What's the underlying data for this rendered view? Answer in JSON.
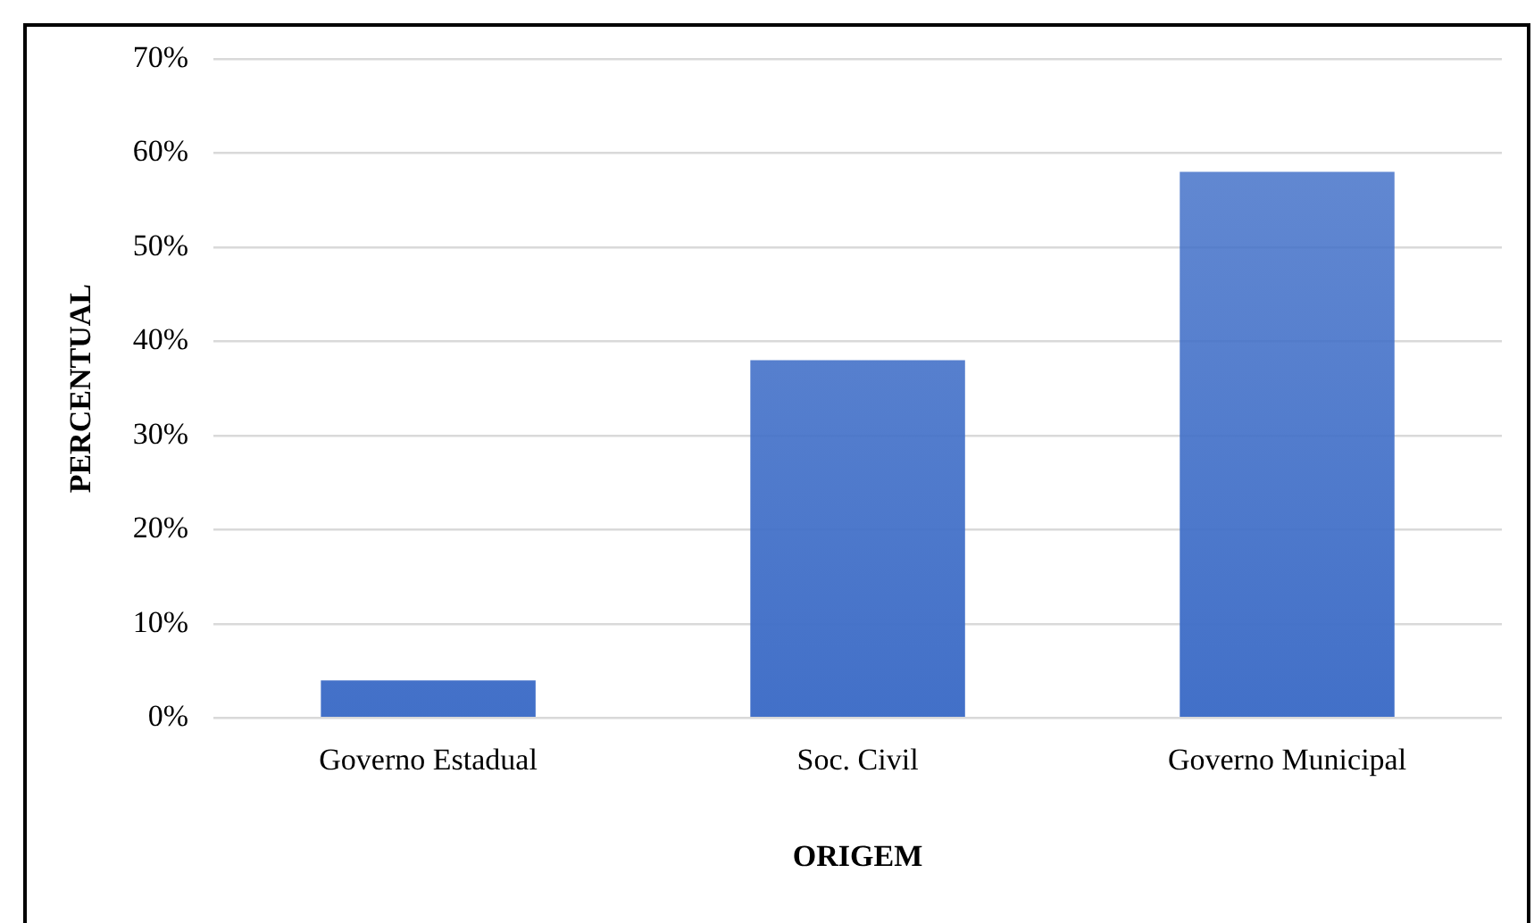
{
  "chart_data": {
    "type": "bar",
    "xlabel": "ORIGEM",
    "ylabel": "PERCENTUAL",
    "categories": [
      "Governo Estadual",
      "Soc. Civil",
      "Governo Municipal"
    ],
    "values": [
      4,
      38,
      58
    ],
    "color": "#4270c8",
    "ylim": [
      0,
      70
    ],
    "yticks": [
      {
        "value": 0,
        "label": "0%"
      },
      {
        "value": 10,
        "label": "10%"
      },
      {
        "value": 20,
        "label": "20%"
      },
      {
        "value": 30,
        "label": "30%"
      },
      {
        "value": 40,
        "label": "40%"
      },
      {
        "value": 50,
        "label": "50%"
      },
      {
        "value": 60,
        "label": "60%"
      },
      {
        "value": 70,
        "label": "70%"
      }
    ],
    "grid": "y",
    "legend": false
  }
}
